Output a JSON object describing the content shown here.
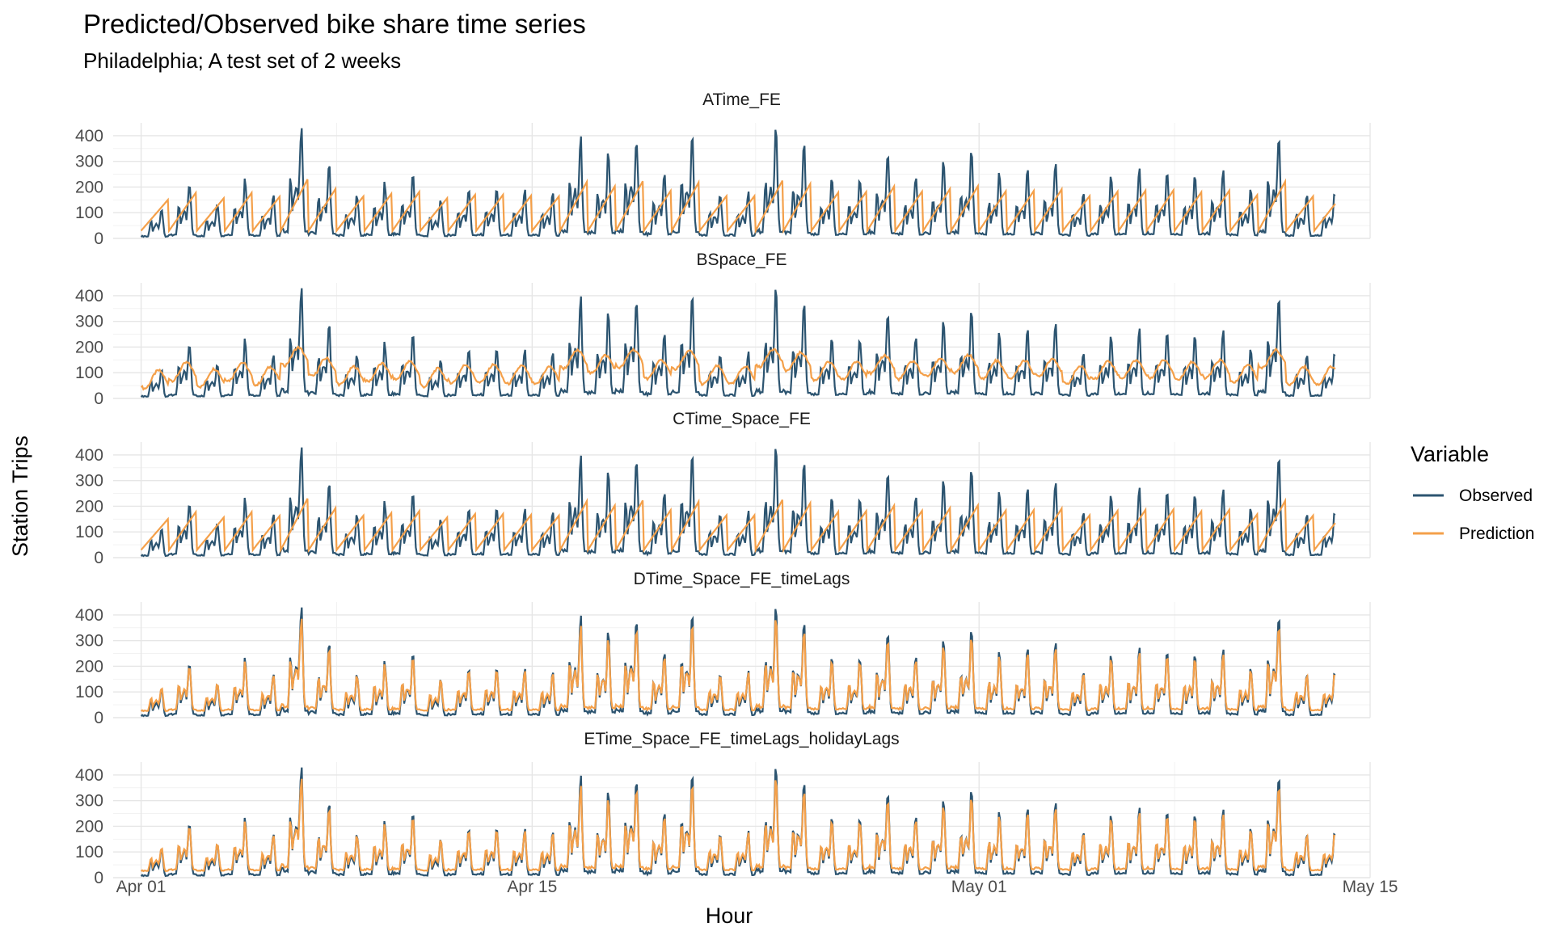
{
  "chart_data": {
    "type": "line",
    "title": "Predicted/Observed bike share time series",
    "subtitle": "Philadelphia; A test set of 2 weeks",
    "xlabel": "Hour",
    "ylabel": "Station Trips",
    "x_range": [
      "2018-03-31",
      "2018-05-15"
    ],
    "x_ticks": [
      "Apr 01",
      "Apr 15",
      "May 01",
      "May 15"
    ],
    "y_ticks": [
      0,
      100,
      200,
      300,
      400
    ],
    "ylim": [
      0,
      450
    ],
    "grid": true,
    "facet_direction": "vertical",
    "legend": {
      "title": "Variable",
      "placement": "right",
      "entries": [
        {
          "name": "Observed",
          "color": "#2c5470"
        },
        {
          "name": "Prediction",
          "color": "#f4a04a"
        }
      ]
    },
    "panels": [
      {
        "title": "ATime_FE",
        "model": "sawtooth"
      },
      {
        "title": "BSpace_FE",
        "model": "smooth"
      },
      {
        "title": "CTime_Space_FE",
        "model": "sawtooth"
      },
      {
        "title": "DTime_Space_FE_timeLags",
        "model": "lagged"
      },
      {
        "title": "ETime_Space_FE_timeLags_holidayLags",
        "model": "lagged"
      }
    ],
    "observed_daily_peaks": [
      120,
      230,
      145,
      230,
      170,
      440,
      290,
      175,
      215,
      245,
      145,
      200,
      200,
      185,
      175,
      400,
      330,
      410,
      260,
      390,
      180,
      180,
      420,
      370,
      235,
      245,
      330,
      250,
      290,
      335,
      255,
      260,
      285,
      180,
      250,
      265,
      270,
      240,
      265,
      195,
      405,
      175,
      175,
      135,
      150,
      100,
      195,
      200,
      170,
      220,
      250,
      255,
      375,
      235,
      250,
      350,
      370,
      370,
      235,
      415,
      275,
      180,
      345,
      395,
      300,
      370,
      325,
      225,
      190,
      160,
      175,
      150,
      130,
      130,
      130,
      130,
      130,
      130,
      130
    ]
  }
}
